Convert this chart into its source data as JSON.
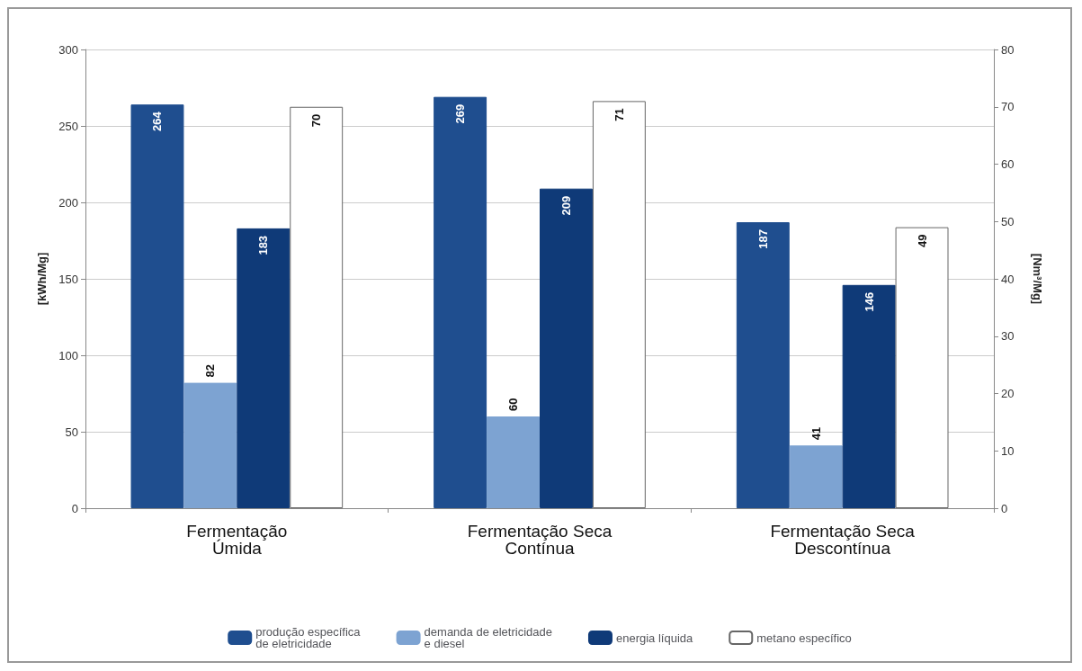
{
  "chart_data": {
    "type": "bar",
    "categories": [
      "Fermentação\nÚmida",
      "Fermentação Seca\nContínua",
      "Fermentação Seca\nDescontínua"
    ],
    "series": [
      {
        "name": "produção específica\nde eletricidade",
        "color": "#1f4e8f",
        "values": [
          264,
          269,
          187
        ]
      },
      {
        "name": "demanda de eletricidade\ne diesel",
        "color": "#7da3d2",
        "values": [
          82,
          60,
          41
        ]
      },
      {
        "name": "energia líquida",
        "color": "#0f3a78",
        "values": [
          183,
          209,
          146
        ]
      },
      {
        "name": "metano específico",
        "color": "#ffffff",
        "values": [
          70,
          71,
          49
        ],
        "axis": "y2"
      }
    ],
    "ylabel": "[kWh/Mg]",
    "y2label": "[Nm³/Mg]",
    "ylim": [
      0,
      300
    ],
    "yticks": [
      0,
      50,
      100,
      150,
      200,
      250,
      300
    ],
    "y2lim": [
      0,
      80
    ],
    "y2ticks": [
      0,
      10,
      20,
      30,
      40,
      50,
      60,
      70,
      80
    ],
    "grid": "y",
    "legend": "bottom",
    "data_labels": true
  }
}
